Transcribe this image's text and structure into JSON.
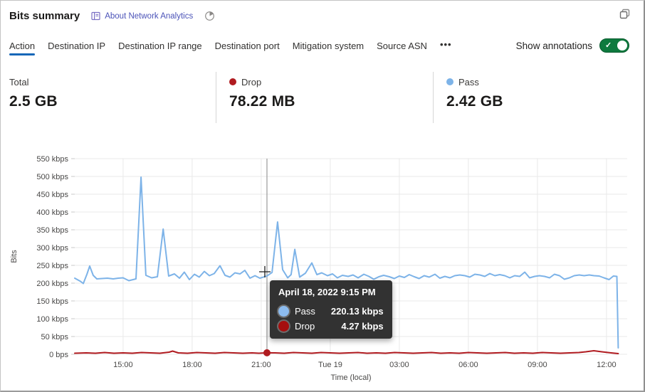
{
  "header": {
    "title": "Bits summary",
    "about_label": "About Network Analytics"
  },
  "tabs": {
    "items": [
      {
        "label": "Action",
        "active": true
      },
      {
        "label": "Destination IP",
        "active": false
      },
      {
        "label": "Destination IP range",
        "active": false
      },
      {
        "label": "Destination port",
        "active": false
      },
      {
        "label": "Mitigation system",
        "active": false
      },
      {
        "label": "Source ASN",
        "active": false
      },
      {
        "label": "•••",
        "active": false,
        "more": true
      }
    ],
    "show_annotations_label": "Show annotations",
    "annotations_on": true
  },
  "stats": [
    {
      "label": "Total",
      "value": "2.5 GB",
      "dot_color": null
    },
    {
      "label": "Drop",
      "value": "78.22 MB",
      "dot_color": "#b01b20"
    },
    {
      "label": "Pass",
      "value": "2.42 GB",
      "dot_color": "#7db3e8"
    }
  ],
  "tooltip": {
    "title": "April 18, 2022 9:15 PM",
    "rows": [
      {
        "label": "Pass",
        "value": "220.13 kbps",
        "color": "#8cbbee"
      },
      {
        "label": "Drop",
        "value": "4.27 kbps",
        "color": "#a50e0e"
      }
    ]
  },
  "colors": {
    "pass": "#7db3e8",
    "drop": "#b01b20",
    "grid": "#e8e8e8",
    "axis_text": "#494847",
    "tab_underline": "#1667b8",
    "toggle_green": "#0e7a3e",
    "hover_line": "#9a9a9a"
  },
  "chart_data": {
    "type": "line",
    "title": "Bits summary",
    "ylabel": "Bits",
    "xlabel": "Time (local)",
    "y_tick_step_kbps": 50,
    "y_max_kbps": 550,
    "y_tick_labels": [
      "0 bps",
      "50 kbps",
      "100 kbps",
      "150 kbps",
      "200 kbps",
      "250 kbps",
      "300 kbps",
      "350 kbps",
      "400 kbps",
      "450 kbps",
      "500 kbps",
      "550 kbps"
    ],
    "x_ticks": [
      {
        "t": 2.1,
        "label": "15:00"
      },
      {
        "t": 5.1,
        "label": "18:00"
      },
      {
        "t": 8.1,
        "label": "21:00"
      },
      {
        "t": 11.1,
        "label": "Tue 19"
      },
      {
        "t": 14.1,
        "label": "03:00"
      },
      {
        "t": 17.1,
        "label": "06:00"
      },
      {
        "t": 20.1,
        "label": "09:00"
      },
      {
        "t": 23.1,
        "label": "12:00"
      }
    ],
    "hover": {
      "t": 8.35,
      "time_label": "April 18, 2022 9:15 PM",
      "pass_kbps": 220.13,
      "drop_kbps": 4.27
    },
    "series": [
      {
        "name": "Pass",
        "color": "#7db3e8",
        "points": [
          [
            0,
            214
          ],
          [
            0.25,
            205
          ],
          [
            0.37,
            199
          ],
          [
            0.53,
            225
          ],
          [
            0.65,
            248
          ],
          [
            0.8,
            222
          ],
          [
            0.96,
            212
          ],
          [
            1.18,
            213
          ],
          [
            1.42,
            214
          ],
          [
            1.67,
            212
          ],
          [
            1.89,
            214
          ],
          [
            2.1,
            215
          ],
          [
            2.35,
            207
          ],
          [
            2.66,
            212
          ],
          [
            2.88,
            498
          ],
          [
            3.09,
            222
          ],
          [
            3.34,
            215
          ],
          [
            3.59,
            218
          ],
          [
            3.84,
            352
          ],
          [
            4.08,
            220
          ],
          [
            4.33,
            226
          ],
          [
            4.55,
            214
          ],
          [
            4.76,
            231
          ],
          [
            4.98,
            210
          ],
          [
            5.2,
            225
          ],
          [
            5.41,
            217
          ],
          [
            5.63,
            233
          ],
          [
            5.85,
            221
          ],
          [
            6.06,
            227
          ],
          [
            6.31,
            249
          ],
          [
            6.53,
            222
          ],
          [
            6.74,
            217
          ],
          [
            6.96,
            229
          ],
          [
            7.18,
            226
          ],
          [
            7.39,
            236
          ],
          [
            7.61,
            214
          ],
          [
            7.83,
            221
          ],
          [
            8.04,
            214
          ],
          [
            8.35,
            220.13
          ],
          [
            8.57,
            230
          ],
          [
            8.81,
            372
          ],
          [
            9.03,
            238
          ],
          [
            9.25,
            215
          ],
          [
            9.4,
            224
          ],
          [
            9.56,
            295
          ],
          [
            9.77,
            217
          ],
          [
            10.02,
            228
          ],
          [
            10.3,
            257
          ],
          [
            10.52,
            224
          ],
          [
            10.73,
            229
          ],
          [
            10.98,
            221
          ],
          [
            11.2,
            226
          ],
          [
            11.41,
            215
          ],
          [
            11.63,
            222
          ],
          [
            11.88,
            219
          ],
          [
            12.09,
            223
          ],
          [
            12.31,
            215
          ],
          [
            12.56,
            225
          ],
          [
            12.78,
            219
          ],
          [
            12.99,
            211
          ],
          [
            13.21,
            218
          ],
          [
            13.42,
            222
          ],
          [
            13.67,
            218
          ],
          [
            13.88,
            213
          ],
          [
            14.1,
            220
          ],
          [
            14.32,
            216
          ],
          [
            14.53,
            224
          ],
          [
            14.75,
            218
          ],
          [
            14.96,
            213
          ],
          [
            15.18,
            221
          ],
          [
            15.4,
            217
          ],
          [
            15.65,
            225
          ],
          [
            15.86,
            214
          ],
          [
            16.08,
            219
          ],
          [
            16.3,
            215
          ],
          [
            16.51,
            221
          ],
          [
            16.73,
            223
          ],
          [
            16.95,
            221
          ],
          [
            17.16,
            217
          ],
          [
            17.38,
            225
          ],
          [
            17.6,
            223
          ],
          [
            17.81,
            219
          ],
          [
            18.03,
            227
          ],
          [
            18.25,
            221
          ],
          [
            18.46,
            224
          ],
          [
            18.68,
            221
          ],
          [
            18.9,
            215
          ],
          [
            19.11,
            221
          ],
          [
            19.33,
            219
          ],
          [
            19.55,
            231
          ],
          [
            19.76,
            215
          ],
          [
            19.98,
            219
          ],
          [
            20.19,
            221
          ],
          [
            20.41,
            219
          ],
          [
            20.63,
            215
          ],
          [
            20.84,
            225
          ],
          [
            21.06,
            221
          ],
          [
            21.27,
            211
          ],
          [
            21.49,
            215
          ],
          [
            21.7,
            221
          ],
          [
            21.92,
            223
          ],
          [
            22.13,
            221
          ],
          [
            22.35,
            223
          ],
          [
            22.56,
            221
          ],
          [
            22.78,
            220
          ],
          [
            22.99,
            215
          ],
          [
            23.21,
            210
          ],
          [
            23.4,
            220
          ],
          [
            23.55,
            219
          ],
          [
            23.61,
            18
          ]
        ]
      },
      {
        "name": "Drop",
        "color": "#b01b20",
        "points": [
          [
            0,
            3
          ],
          [
            0.5,
            4
          ],
          [
            0.9,
            3
          ],
          [
            1.3,
            5
          ],
          [
            1.7,
            3
          ],
          [
            2.1,
            4
          ],
          [
            2.5,
            3
          ],
          [
            2.9,
            5
          ],
          [
            3.3,
            4
          ],
          [
            3.7,
            3
          ],
          [
            4.1,
            6
          ],
          [
            4.25,
            9
          ],
          [
            4.5,
            4
          ],
          [
            4.9,
            3
          ],
          [
            5.3,
            5
          ],
          [
            5.7,
            4
          ],
          [
            6.1,
            3
          ],
          [
            6.5,
            5
          ],
          [
            6.9,
            4
          ],
          [
            7.3,
            3
          ],
          [
            7.7,
            4
          ],
          [
            8.0,
            3
          ],
          [
            8.35,
            4.27
          ],
          [
            8.7,
            4
          ],
          [
            9.1,
            3
          ],
          [
            9.5,
            5
          ],
          [
            9.9,
            4
          ],
          [
            10.3,
            3
          ],
          [
            10.7,
            5
          ],
          [
            11.1,
            4
          ],
          [
            11.5,
            3
          ],
          [
            11.9,
            4
          ],
          [
            12.3,
            5
          ],
          [
            12.7,
            3
          ],
          [
            13.1,
            4
          ],
          [
            13.5,
            3
          ],
          [
            13.9,
            5
          ],
          [
            14.3,
            4
          ],
          [
            14.7,
            3
          ],
          [
            15.1,
            4
          ],
          [
            15.5,
            5
          ],
          [
            15.9,
            3
          ],
          [
            16.3,
            4
          ],
          [
            16.7,
            3
          ],
          [
            17.1,
            5
          ],
          [
            17.5,
            4
          ],
          [
            17.9,
            3
          ],
          [
            18.3,
            4
          ],
          [
            18.7,
            5
          ],
          [
            19.1,
            3
          ],
          [
            19.5,
            4
          ],
          [
            19.9,
            3
          ],
          [
            20.3,
            5
          ],
          [
            20.7,
            4
          ],
          [
            21.1,
            3
          ],
          [
            21.5,
            4
          ],
          [
            21.9,
            5
          ],
          [
            22.2,
            7
          ],
          [
            22.55,
            10
          ],
          [
            22.9,
            7
          ],
          [
            23.3,
            4
          ],
          [
            23.61,
            2
          ]
        ]
      }
    ],
    "layout_hints": {
      "grid": true,
      "hours_span": 24
    }
  }
}
